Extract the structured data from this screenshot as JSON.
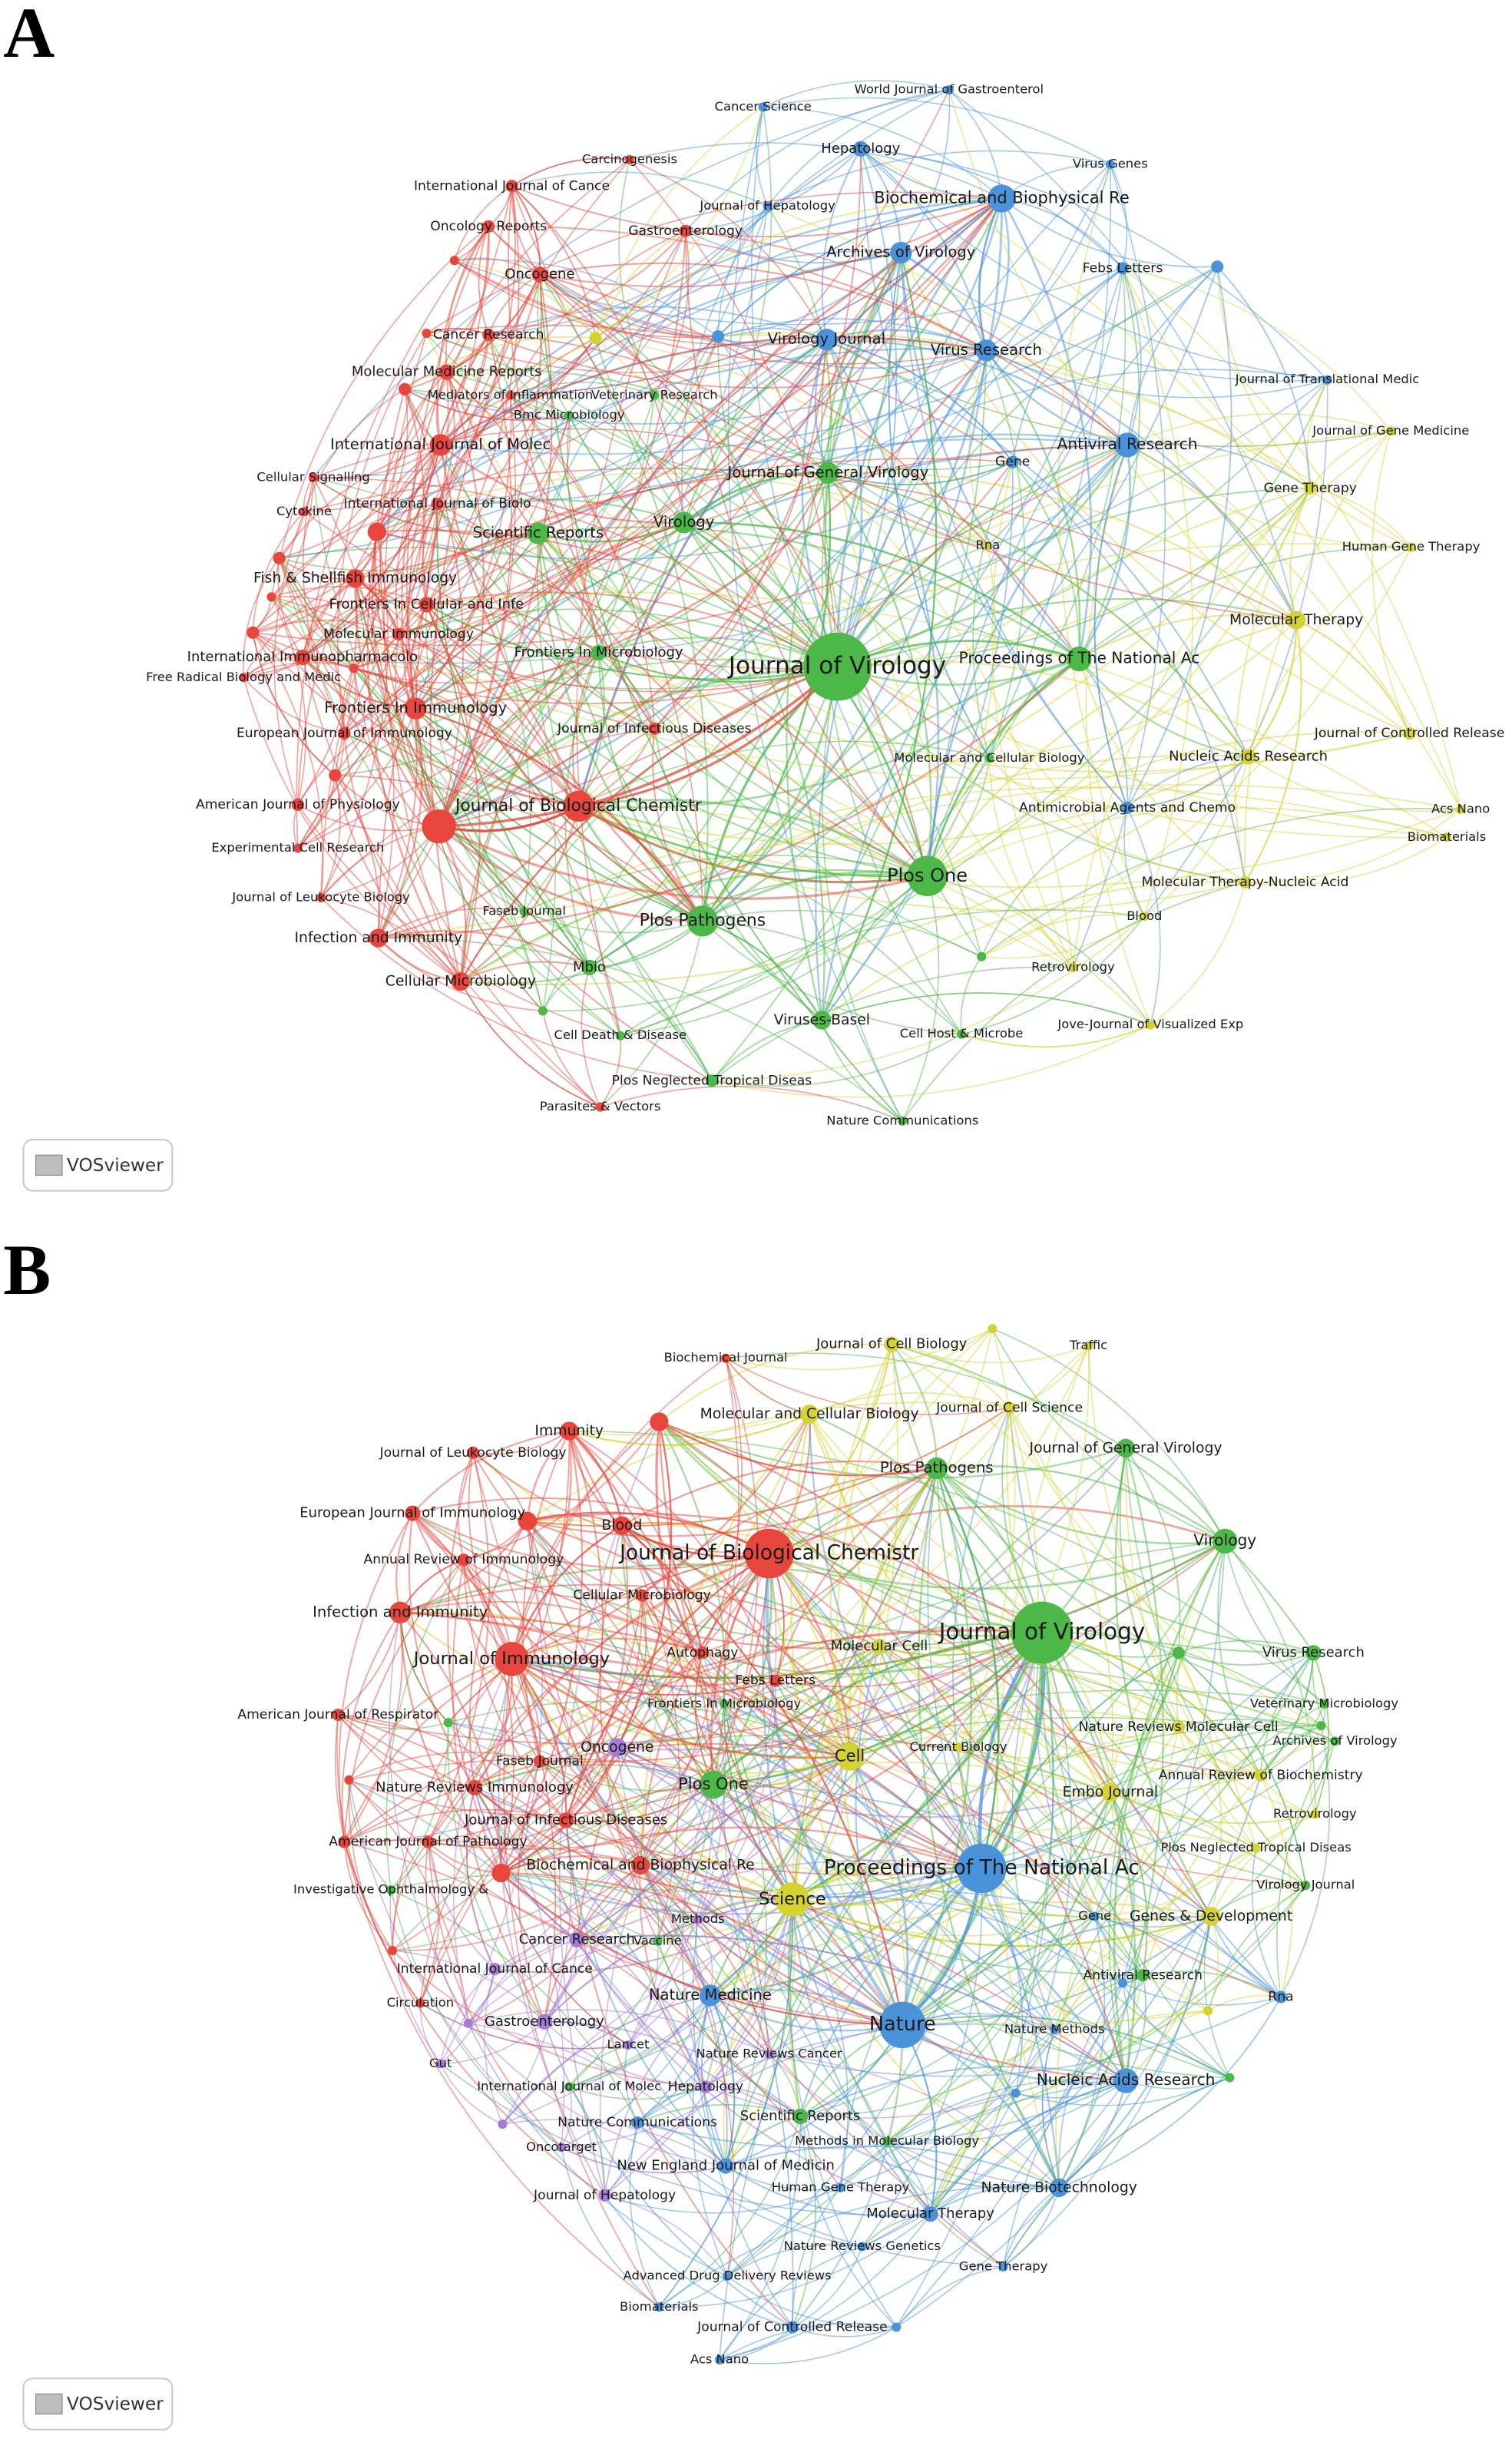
{
  "panels": [
    {
      "letter": "A",
      "badge": "VOSviewer",
      "clusters": [
        {
          "color": "#e8453c"
        },
        {
          "color": "#4cb848"
        },
        {
          "color": "#4a93db"
        },
        {
          "color": "#d5d332"
        }
      ],
      "nodes": [
        {
          "label": "Journal of Virology",
          "cluster": 1
        },
        {
          "label": "Plos One",
          "cluster": 1
        },
        {
          "label": "Plos Pathogens",
          "cluster": 1
        },
        {
          "label": "Journal of Biological Chemistr",
          "cluster": 0
        },
        {
          "label": "Proceedings of The National Ac",
          "cluster": 1
        },
        {
          "label": "Biochemical and Biophysical Re",
          "cluster": 2
        },
        {
          "label": "Antiviral Research",
          "cluster": 2
        },
        {
          "label": "Virus Research",
          "cluster": 2
        },
        {
          "label": "Virology Journal",
          "cluster": 2
        },
        {
          "label": "Archives of Virology",
          "cluster": 2
        },
        {
          "label": "Hepatology",
          "cluster": 2
        },
        {
          "label": "World Journal of Gastroenterol",
          "cluster": 2
        },
        {
          "label": "Cancer Science",
          "cluster": 2
        },
        {
          "label": "Virus Genes",
          "cluster": 2
        },
        {
          "label": "Journal of Hepatology",
          "cluster": 2
        },
        {
          "label": "Febs Letters",
          "cluster": 2
        },
        {
          "label": "Journal of Translational Medic",
          "cluster": 2
        },
        {
          "label": "Journal of Gene Medicine",
          "cluster": 3
        },
        {
          "label": "Gene Therapy",
          "cluster": 3
        },
        {
          "label": "Human Gene Therapy",
          "cluster": 3
        },
        {
          "label": "Molecular Therapy",
          "cluster": 3
        },
        {
          "label": "Journal of Controlled Release",
          "cluster": 3
        },
        {
          "label": "Acs Nano",
          "cluster": 3
        },
        {
          "label": "Biomaterials",
          "cluster": 3
        },
        {
          "label": "Nucleic Acids Research",
          "cluster": 3
        },
        {
          "label": "Molecular Therapy-Nucleic Acid",
          "cluster": 3
        },
        {
          "label": "Blood",
          "cluster": 3
        },
        {
          "label": "Retrovirology",
          "cluster": 3
        },
        {
          "label": "Jove-Journal of Visualized Exp",
          "cluster": 3
        },
        {
          "label": "Antimicrobial Agents and Chemo",
          "cluster": 2
        },
        {
          "label": "Molecular and Cellular Biology",
          "cluster": 1
        },
        {
          "label": "Gene",
          "cluster": 2
        },
        {
          "label": "Rna",
          "cluster": 3
        },
        {
          "label": "Journal of General Virology",
          "cluster": 1
        },
        {
          "label": "Virology",
          "cluster": 1
        },
        {
          "label": "Scientific Reports",
          "cluster": 1
        },
        {
          "label": "Frontiers In Microbiology",
          "cluster": 1
        },
        {
          "label": "Journal of Infectious Diseases",
          "cluster": 0
        },
        {
          "label": "Faseb Journal",
          "cluster": 1
        },
        {
          "label": "Mbio",
          "cluster": 1
        },
        {
          "label": "Cellular Microbiology",
          "cluster": 0
        },
        {
          "label": "Infection and Immunity",
          "cluster": 0
        },
        {
          "label": "Cell Death & Disease",
          "cluster": 1
        },
        {
          "label": "Viruses-Basel",
          "cluster": 1
        },
        {
          "label": "Cell Host & Microbe",
          "cluster": 1
        },
        {
          "label": "Plos Neglected Tropical Diseas",
          "cluster": 1
        },
        {
          "label": "Parasites & Vectors",
          "cluster": 0
        },
        {
          "label": "Nature Communications",
          "cluster": 1
        },
        {
          "label": "Carcinogenesis",
          "cluster": 0
        },
        {
          "label": "International Journal of Cance",
          "cluster": 0
        },
        {
          "label": "Oncology Reports",
          "cluster": 0
        },
        {
          "label": "Gastroenterology",
          "cluster": 0
        },
        {
          "label": "Oncogene",
          "cluster": 0
        },
        {
          "label": "Cancer Research",
          "cluster": 0
        },
        {
          "label": "Molecular Medicine Reports",
          "cluster": 0
        },
        {
          "label": "Mediators of Inflammation",
          "cluster": 0
        },
        {
          "label": "Veterinary Research",
          "cluster": 1
        },
        {
          "label": "Bmc Microbiology",
          "cluster": 1
        },
        {
          "label": "International Journal of Molec",
          "cluster": 0
        },
        {
          "label": "Cellular Signalling",
          "cluster": 0
        },
        {
          "label": "International Journal of Biolo",
          "cluster": 0
        },
        {
          "label": "Cytokine",
          "cluster": 0
        },
        {
          "label": "Fish & Shellfish Immunology",
          "cluster": 0
        },
        {
          "label": "Frontiers In Cellular and Infe",
          "cluster": 0
        },
        {
          "label": "Molecular Immunology",
          "cluster": 0
        },
        {
          "label": "International Immunopharmacolo",
          "cluster": 0
        },
        {
          "label": "Free Radical Biology and Medic",
          "cluster": 0
        },
        {
          "label": "Frontiers In Immunology",
          "cluster": 0
        },
        {
          "label": "European Journal of Immunology",
          "cluster": 0
        },
        {
          "label": "American Journal of Physiology",
          "cluster": 0
        },
        {
          "label": "Experimental Cell Research",
          "cluster": 0
        },
        {
          "label": "Journal of Leukocyte Biology",
          "cluster": 0
        }
      ]
    },
    {
      "letter": "B",
      "badge": "VOSviewer",
      "clusters": [
        {
          "color": "#e8453c"
        },
        {
          "color": "#4cb848"
        },
        {
          "color": "#4a93db"
        },
        {
          "color": "#d5d332"
        },
        {
          "color": "#a57bd6"
        }
      ],
      "nodes": [
        {
          "label": "Journal of Virology",
          "cluster": 1
        },
        {
          "label": "Journal of Biological Chemistr",
          "cluster": 0
        },
        {
          "label": "Proceedings of The National Ac",
          "cluster": 2
        },
        {
          "label": "Nature",
          "cluster": 2
        },
        {
          "label": "Science",
          "cluster": 3
        },
        {
          "label": "Cell",
          "cluster": 3
        },
        {
          "label": "Plos One",
          "cluster": 1
        },
        {
          "label": "Journal of Immunology",
          "cluster": 0
        },
        {
          "label": "Embo Journal",
          "cluster": 3
        },
        {
          "label": "Genes & Development",
          "cluster": 3
        },
        {
          "label": "Nucleic Acids Research",
          "cluster": 2
        },
        {
          "label": "Nature Biotechnology",
          "cluster": 2
        },
        {
          "label": "Molecular Therapy",
          "cluster": 2
        },
        {
          "label": "Gene Therapy",
          "cluster": 2
        },
        {
          "label": "Human Gene Therapy",
          "cluster": 2
        },
        {
          "label": "Nature Reviews Genetics",
          "cluster": 2
        },
        {
          "label": "New England Journal of Medicin",
          "cluster": 2
        },
        {
          "label": "Methods in Molecular Biology",
          "cluster": 1
        },
        {
          "label": "Scientific Reports",
          "cluster": 1
        },
        {
          "label": "Nature Reviews Cancer",
          "cluster": 4
        },
        {
          "label": "Nature Medicine",
          "cluster": 2
        },
        {
          "label": "Nature Methods",
          "cluster": 2
        },
        {
          "label": "Antiviral Research",
          "cluster": 1
        },
        {
          "label": "Rna",
          "cluster": 2
        },
        {
          "label": "Gene",
          "cluster": 2
        },
        {
          "label": "Virology Journal",
          "cluster": 1
        },
        {
          "label": "Plos Neglected Tropical Diseas",
          "cluster": 3
        },
        {
          "label": "Retrovirology",
          "cluster": 3
        },
        {
          "label": "Annual Review of Biochemistry",
          "cluster": 3
        },
        {
          "label": "Nature Reviews Molecular Cell",
          "cluster": 3
        },
        {
          "label": "Archives of Virology",
          "cluster": 1
        },
        {
          "label": "Veterinary Microbiology",
          "cluster": 1
        },
        {
          "label": "Virus Research",
          "cluster": 1
        },
        {
          "label": "Virology",
          "cluster": 1
        },
        {
          "label": "Journal of General Virology",
          "cluster": 1
        },
        {
          "label": "Plos Pathogens",
          "cluster": 1
        },
        {
          "label": "Journal of Cell Science",
          "cluster": 3
        },
        {
          "label": "Traffic",
          "cluster": 3
        },
        {
          "label": "Journal of Cell Biology",
          "cluster": 3
        },
        {
          "label": "Molecular and Cellular Biology",
          "cluster": 3
        },
        {
          "label": "Biochemical Journal",
          "cluster": 0
        },
        {
          "label": "Immunity",
          "cluster": 0
        },
        {
          "label": "Journal of Leukocyte Biology",
          "cluster": 0
        },
        {
          "label": "European Journal of Immunology",
          "cluster": 0
        },
        {
          "label": "Blood",
          "cluster": 0
        },
        {
          "label": "Annual Review of Immunology",
          "cluster": 0
        },
        {
          "label": "Cellular Microbiology",
          "cluster": 0
        },
        {
          "label": "Infection and Immunity",
          "cluster": 0
        },
        {
          "label": "Autophagy",
          "cluster": 0
        },
        {
          "label": "Molecular Cell",
          "cluster": 3
        },
        {
          "label": "Febs Letters",
          "cluster": 0
        },
        {
          "label": "Frontiers In Microbiology",
          "cluster": 1
        },
        {
          "label": "Current Biology",
          "cluster": 3
        },
        {
          "label": "American Journal of Respirator",
          "cluster": 0
        },
        {
          "label": "Oncogene",
          "cluster": 4
        },
        {
          "label": "Faseb Journal",
          "cluster": 0
        },
        {
          "label": "Nature Reviews Immunology",
          "cluster": 0
        },
        {
          "label": "Journal of Infectious Diseases",
          "cluster": 0
        },
        {
          "label": "American Journal of Pathology",
          "cluster": 0
        },
        {
          "label": "Biochemical and Biophysical Re",
          "cluster": 0
        },
        {
          "label": "Investigative Ophthalmology &",
          "cluster": 1
        },
        {
          "label": "Methods",
          "cluster": 4
        },
        {
          "label": "Cancer Research",
          "cluster": 4
        },
        {
          "label": "Vaccine",
          "cluster": 1
        },
        {
          "label": "International Journal of Cance",
          "cluster": 4
        },
        {
          "label": "Circulation",
          "cluster": 0
        },
        {
          "label": "Gastroenterology",
          "cluster": 4
        },
        {
          "label": "Lancet",
          "cluster": 4
        },
        {
          "label": "Gut",
          "cluster": 4
        },
        {
          "label": "International Journal of Molec",
          "cluster": 1
        },
        {
          "label": "Hepatology",
          "cluster": 4
        },
        {
          "label": "Nature Communications",
          "cluster": 2
        },
        {
          "label": "Oncotarget",
          "cluster": 4
        },
        {
          "label": "Journal of Hepatology",
          "cluster": 4
        },
        {
          "label": "Advanced Drug Delivery Reviews",
          "cluster": 2
        },
        {
          "label": "Biomaterials",
          "cluster": 2
        },
        {
          "label": "Journal of Controlled Release",
          "cluster": 2
        },
        {
          "label": "Acs Nano",
          "cluster": 2
        }
      ]
    }
  ]
}
